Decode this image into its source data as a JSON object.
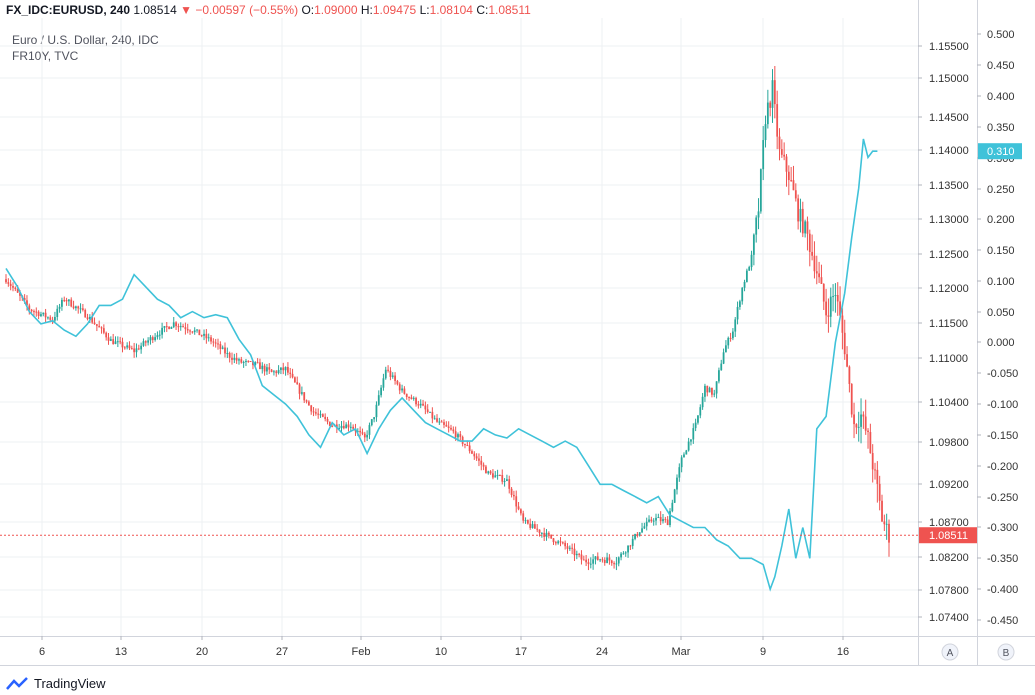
{
  "header": {
    "symbol": "FX_IDC:EURUSD, 240",
    "last": "1.08514",
    "change": "−0.00597 (−0.55%)",
    "o_label": "O:",
    "o_val": "1.09000",
    "h_label": "H:",
    "h_val": "1.09475",
    "l_label": "L:",
    "l_val": "1.08104",
    "c_label": "C:",
    "c_val": "1.08511"
  },
  "legend": {
    "line1": "Euro / U.S. Dollar, 240, IDC",
    "line2": "FR10Y, TVC"
  },
  "footer": {
    "brand": "TradingView"
  },
  "scale_buttons": {
    "a": "A",
    "b": "B"
  },
  "colors": {
    "up": "#26a69a",
    "down": "#ef5350",
    "line": "#3fc2d9",
    "grid": "#eef0f3",
    "axis_text": "#333333"
  },
  "chart_data": {
    "type": "candlestick+line",
    "x_ticks": [
      "6",
      "13",
      "20",
      "27",
      "Feb",
      "10",
      "17",
      "24",
      "Mar",
      "9",
      "16"
    ],
    "right_axis_1": {
      "ticks": [
        "1.15500",
        "1.15000",
        "1.14500",
        "1.14000",
        "1.13500",
        "1.13000",
        "1.12500",
        "1.12000",
        "1.11500",
        "1.11000",
        "1.10400",
        "1.09800",
        "1.09200",
        "1.08700",
        "1.08200",
        "1.07800",
        "1.07400"
      ]
    },
    "right_axis_2": {
      "ticks": [
        "0.500",
        "0.450",
        "0.400",
        "0.350",
        "0.300",
        "0.250",
        "0.200",
        "0.150",
        "0.100",
        "0.050",
        "0.000",
        "-0.050",
        "-0.100",
        "-0.150",
        "-0.200",
        "-0.250",
        "-0.300",
        "-0.350",
        "-0.400",
        "-0.450"
      ],
      "range": [
        -0.48,
        0.515
      ]
    },
    "price_tag": "1.08511",
    "fr10y_tag": "0.310",
    "series": [
      {
        "name": "Euro / U.S. Dollar, 240, IDC",
        "close_anchors": [
          [
            0,
            1.1213
          ],
          [
            10,
            1.117
          ],
          [
            20,
            1.1155
          ],
          [
            25,
            1.1185
          ],
          [
            35,
            1.116
          ],
          [
            45,
            1.1125
          ],
          [
            55,
            1.111
          ],
          [
            65,
            1.1135
          ],
          [
            72,
            1.115
          ],
          [
            80,
            1.114
          ],
          [
            88,
            1.1125
          ],
          [
            95,
            1.1105
          ],
          [
            100,
            1.1095
          ],
          [
            108,
            1.109
          ],
          [
            114,
            1.108
          ],
          [
            120,
            1.1085
          ],
          [
            125,
            1.106
          ],
          [
            132,
            1.1025
          ],
          [
            140,
            1.1005
          ],
          [
            148,
            1.1005
          ],
          [
            154,
            1.0985
          ],
          [
            158,
            1.102
          ],
          [
            163,
            1.1085
          ],
          [
            170,
            1.1055
          ],
          [
            178,
            1.1035
          ],
          [
            185,
            1.101
          ],
          [
            192,
            1.0995
          ],
          [
            200,
            1.0965
          ],
          [
            207,
            1.0935
          ],
          [
            215,
            1.0925
          ],
          [
            222,
            1.087
          ],
          [
            230,
            1.0855
          ],
          [
            240,
            1.0835
          ],
          [
            248,
            1.0815
          ],
          [
            255,
            1.0818
          ],
          [
            262,
            1.0815
          ],
          [
            267,
            1.0835
          ],
          [
            272,
            1.0858
          ],
          [
            278,
            1.0875
          ],
          [
            284,
            1.087
          ],
          [
            290,
            1.0955
          ],
          [
            296,
            1.1005
          ],
          [
            300,
            1.106
          ],
          [
            304,
            1.105
          ],
          [
            308,
            1.111
          ],
          [
            312,
            1.114
          ],
          [
            316,
            1.12
          ],
          [
            320,
            1.1245
          ],
          [
            323,
            1.1315
          ],
          [
            326,
            1.145
          ],
          [
            329,
            1.1485
          ],
          [
            332,
            1.1395
          ],
          [
            336,
            1.1365
          ],
          [
            340,
            1.131
          ],
          [
            344,
            1.1275
          ],
          [
            348,
            1.1225
          ],
          [
            352,
            1.1165
          ],
          [
            356,
            1.1195
          ],
          [
            360,
            1.1115
          ],
          [
            364,
            1.1005
          ],
          [
            367,
            1.102
          ],
          [
            370,
            1.0985
          ],
          [
            373,
            1.093
          ],
          [
            376,
            1.0875
          ],
          [
            379,
            1.0851
          ]
        ],
        "candle_count": 380
      },
      {
        "name": "FR10Y, TVC",
        "points": [
          [
            0,
            0.12
          ],
          [
            5,
            0.09
          ],
          [
            10,
            0.05
          ],
          [
            15,
            0.03
          ],
          [
            20,
            0.035
          ],
          [
            25,
            0.02
          ],
          [
            30,
            0.01
          ],
          [
            35,
            0.03
          ],
          [
            40,
            0.06
          ],
          [
            45,
            0.06
          ],
          [
            50,
            0.07
          ],
          [
            55,
            0.11
          ],
          [
            60,
            0.09
          ],
          [
            65,
            0.07
          ],
          [
            70,
            0.06
          ],
          [
            75,
            0.04
          ],
          [
            80,
            0.05
          ],
          [
            85,
            0.04
          ],
          [
            90,
            0.045
          ],
          [
            95,
            0.04
          ],
          [
            100,
            0.005
          ],
          [
            105,
            -0.02
          ],
          [
            110,
            -0.07
          ],
          [
            115,
            -0.085
          ],
          [
            120,
            -0.1
          ],
          [
            125,
            -0.12
          ],
          [
            130,
            -0.15
          ],
          [
            135,
            -0.17
          ],
          [
            140,
            -0.13
          ],
          [
            145,
            -0.15
          ],
          [
            150,
            -0.14
          ],
          [
            155,
            -0.18
          ],
          [
            160,
            -0.14
          ],
          [
            165,
            -0.11
          ],
          [
            170,
            -0.09
          ],
          [
            175,
            -0.11
          ],
          [
            180,
            -0.13
          ],
          [
            185,
            -0.14
          ],
          [
            190,
            -0.15
          ],
          [
            195,
            -0.16
          ],
          [
            200,
            -0.16
          ],
          [
            205,
            -0.14
          ],
          [
            210,
            -0.15
          ],
          [
            215,
            -0.155
          ],
          [
            220,
            -0.14
          ],
          [
            225,
            -0.15
          ],
          [
            230,
            -0.16
          ],
          [
            235,
            -0.17
          ],
          [
            240,
            -0.16
          ],
          [
            245,
            -0.17
          ],
          [
            250,
            -0.2
          ],
          [
            255,
            -0.23
          ],
          [
            260,
            -0.23
          ],
          [
            265,
            -0.24
          ],
          [
            270,
            -0.25
          ],
          [
            275,
            -0.26
          ],
          [
            280,
            -0.25
          ],
          [
            285,
            -0.28
          ],
          [
            290,
            -0.29
          ],
          [
            295,
            -0.3
          ],
          [
            300,
            -0.3
          ],
          [
            305,
            -0.32
          ],
          [
            310,
            -0.33
          ],
          [
            315,
            -0.35
          ],
          [
            320,
            -0.35
          ],
          [
            325,
            -0.36
          ],
          [
            328,
            -0.4
          ],
          [
            330,
            -0.38
          ],
          [
            333,
            -0.33
          ],
          [
            336,
            -0.27
          ],
          [
            339,
            -0.35
          ],
          [
            342,
            -0.3
          ],
          [
            345,
            -0.35
          ],
          [
            348,
            -0.14
          ],
          [
            352,
            -0.12
          ],
          [
            356,
            0.0
          ],
          [
            360,
            0.08
          ],
          [
            363,
            0.17
          ],
          [
            366,
            0.25
          ],
          [
            368,
            0.33
          ],
          [
            370,
            0.3
          ],
          [
            372,
            0.31
          ],
          [
            374,
            0.31
          ]
        ]
      }
    ]
  }
}
